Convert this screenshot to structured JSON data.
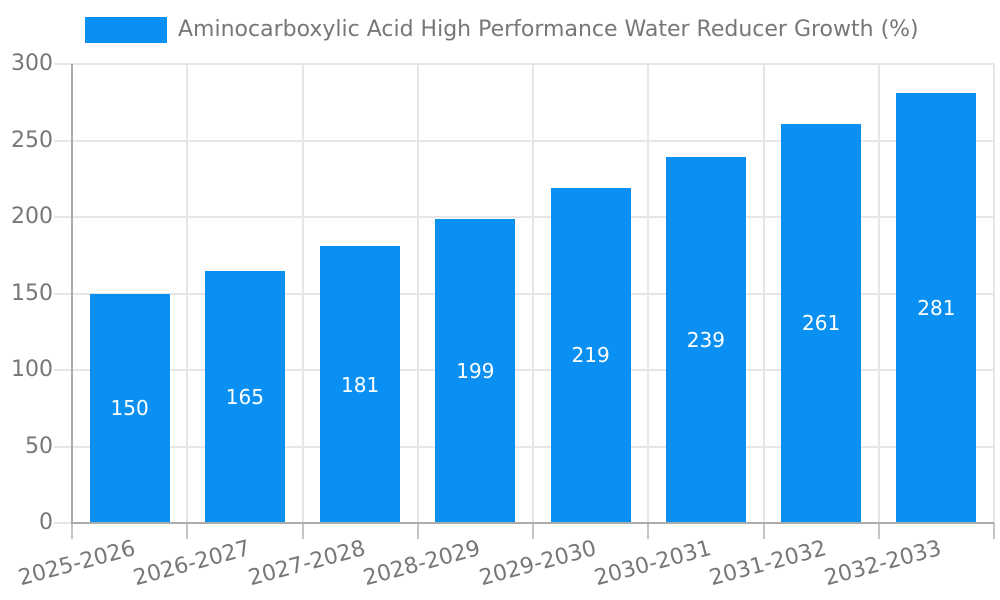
{
  "chart_data": {
    "type": "bar",
    "title": "Aminocarboxylic Acid High Performance Water Reducer Growth (%)",
    "categories": [
      "2025-2026",
      "2026-2027",
      "2027-2028",
      "2028-2029",
      "2029-2030",
      "2030-2031",
      "2031-2032",
      "2032-2033"
    ],
    "series": [
      {
        "name": "Aminocarboxylic Acid High Performance Water Reducer Growth (%)",
        "values": [
          150,
          165,
          181,
          199,
          219,
          239,
          261,
          281
        ]
      }
    ],
    "xlabel": "",
    "ylabel": "",
    "ylim": [
      0,
      300
    ],
    "yticks": [
      0,
      50,
      100,
      150,
      200,
      250,
      300
    ],
    "grid": true,
    "legend_position": "top-left",
    "x_tick_rotation_deg": -15,
    "value_labels": "inside-center",
    "colors": {
      "bar": "#0a90f2",
      "value_label": "#ffffff",
      "axis_text": "#777777",
      "axis_line": "#ababab",
      "gridline": "#e6e6e6",
      "tick": "#c4c4c4",
      "background": "#ffffff"
    }
  }
}
